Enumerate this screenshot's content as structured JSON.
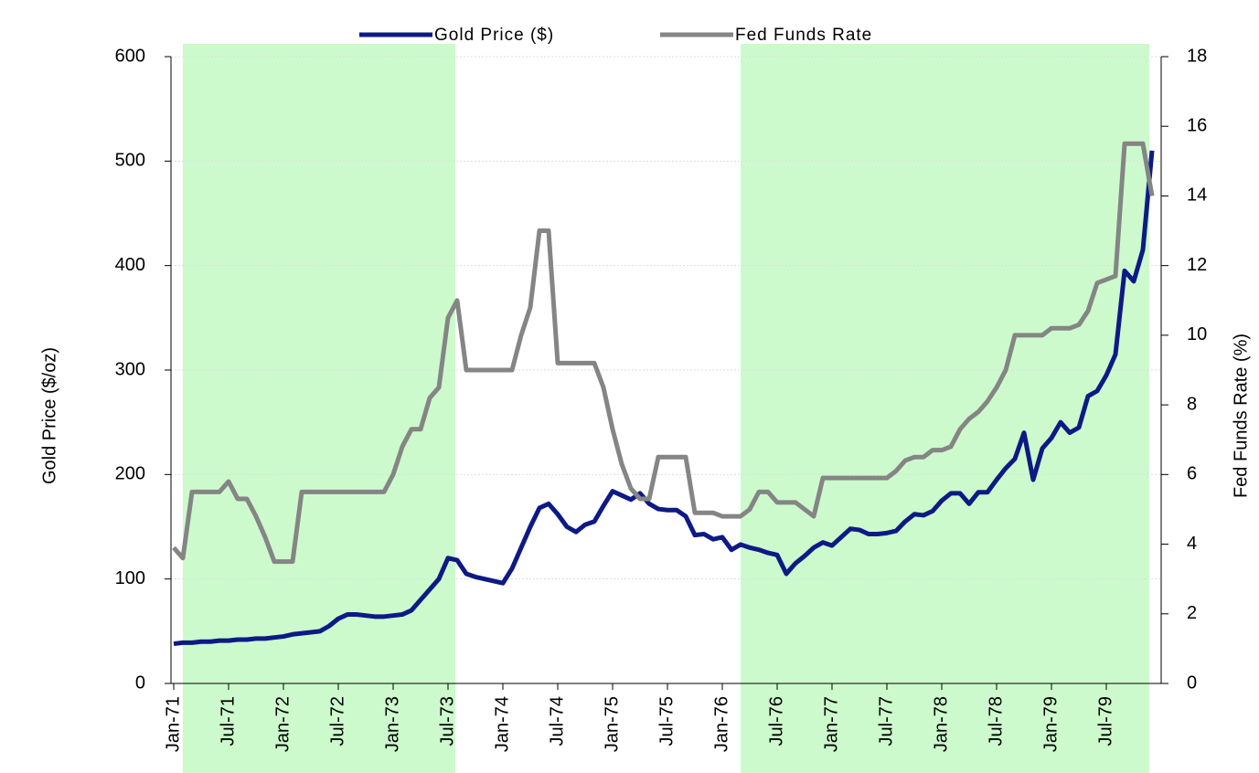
{
  "chart_data": {
    "type": "line",
    "categories": [
      "Jan-71",
      null,
      null,
      null,
      null,
      null,
      "Jul-71",
      null,
      null,
      null,
      null,
      null,
      "Jan-72",
      null,
      null,
      null,
      null,
      null,
      "Jul-72",
      null,
      null,
      null,
      null,
      null,
      "Jan-73",
      null,
      null,
      null,
      null,
      null,
      "Jul-73",
      null,
      null,
      null,
      null,
      null,
      "Jan-74",
      null,
      null,
      null,
      null,
      null,
      "Jul-74",
      null,
      null,
      null,
      null,
      null,
      "Jan-75",
      null,
      null,
      null,
      null,
      null,
      "Jul-75",
      null,
      null,
      null,
      null,
      null,
      "Jan-76",
      null,
      null,
      null,
      null,
      null,
      "Jul-76",
      null,
      null,
      null,
      null,
      null,
      "Jan-77",
      null,
      null,
      null,
      null,
      null,
      "Jul-77",
      null,
      null,
      null,
      null,
      null,
      "Jan-78",
      null,
      null,
      null,
      null,
      null,
      "Jul-78",
      null,
      null,
      null,
      null,
      null,
      "Jan-79",
      null,
      null,
      null,
      null,
      null,
      "Jul-79",
      null,
      null,
      null,
      null,
      null
    ],
    "series": [
      {
        "name": "Gold Price ($)",
        "color": "#0d1a85",
        "axis": "y",
        "values": [
          38,
          39,
          39,
          40,
          40,
          41,
          41,
          42,
          42,
          43,
          43,
          44,
          45,
          47,
          48,
          49,
          50,
          55,
          62,
          66,
          66,
          65,
          64,
          64,
          65,
          66,
          70,
          80,
          90,
          100,
          120,
          118,
          105,
          102,
          100,
          98,
          96,
          110,
          130,
          150,
          168,
          172,
          162,
          150,
          145,
          152,
          155,
          170,
          184,
          180,
          176,
          182,
          172,
          167,
          166,
          166,
          160,
          142,
          143,
          138,
          140,
          128,
          133,
          130,
          128,
          125,
          123,
          105,
          115,
          122,
          130,
          135,
          132,
          140,
          148,
          147,
          143,
          143,
          144,
          146,
          155,
          162,
          161,
          165,
          175,
          182,
          182,
          172,
          183,
          183,
          195,
          206,
          215,
          240,
          195,
          225,
          235,
          250,
          240,
          245,
          275,
          280,
          295,
          315,
          395,
          385,
          415,
          510
        ]
      },
      {
        "name": "Fed Funds Rate",
        "color": "#858585",
        "axis": "y2",
        "values": [
          3.9,
          3.6,
          5.5,
          5.5,
          5.5,
          5.5,
          5.8,
          5.3,
          5.3,
          4.8,
          4.2,
          3.5,
          3.5,
          3.5,
          5.5,
          5.5,
          5.5,
          5.5,
          5.5,
          5.5,
          5.5,
          5.5,
          5.5,
          5.5,
          6,
          6.8,
          7.3,
          7.3,
          8.2,
          8.5,
          10.5,
          11,
          9,
          9,
          9,
          9,
          9,
          9,
          10,
          10.8,
          13,
          13,
          9.2,
          9.2,
          9.2,
          9.2,
          9.2,
          8.5,
          7.3,
          6.3,
          5.6,
          5.3,
          5.3,
          6.5,
          6.5,
          6.5,
          6.5,
          4.9,
          4.9,
          4.9,
          4.8,
          4.8,
          4.8,
          5.0,
          5.5,
          5.5,
          5.2,
          5.2,
          5.2,
          5.0,
          4.8,
          5.9,
          5.9,
          5.9,
          5.9,
          5.9,
          5.9,
          5.9,
          5.9,
          6.1,
          6.4,
          6.5,
          6.5,
          6.7,
          6.7,
          6.8,
          7.3,
          7.6,
          7.8,
          8.1,
          8.5,
          9,
          10,
          10,
          10,
          10,
          10.2,
          10.2,
          10.2,
          10.3,
          10.7,
          11.5,
          11.6,
          11.7,
          15.5,
          15.5,
          15.5,
          14
        ]
      }
    ],
    "y_label": "Gold Price ($/oz)",
    "y2_label": "Fed Funds Rate (%)",
    "ylim": [
      0,
      600
    ],
    "yticks": [
      0,
      100,
      200,
      300,
      400,
      500,
      600
    ],
    "y2lim": [
      0,
      18
    ],
    "y2ticks": [
      0,
      2,
      4,
      6,
      8,
      10,
      12,
      14,
      16,
      18
    ],
    "grid": true,
    "legend": "top"
  }
}
